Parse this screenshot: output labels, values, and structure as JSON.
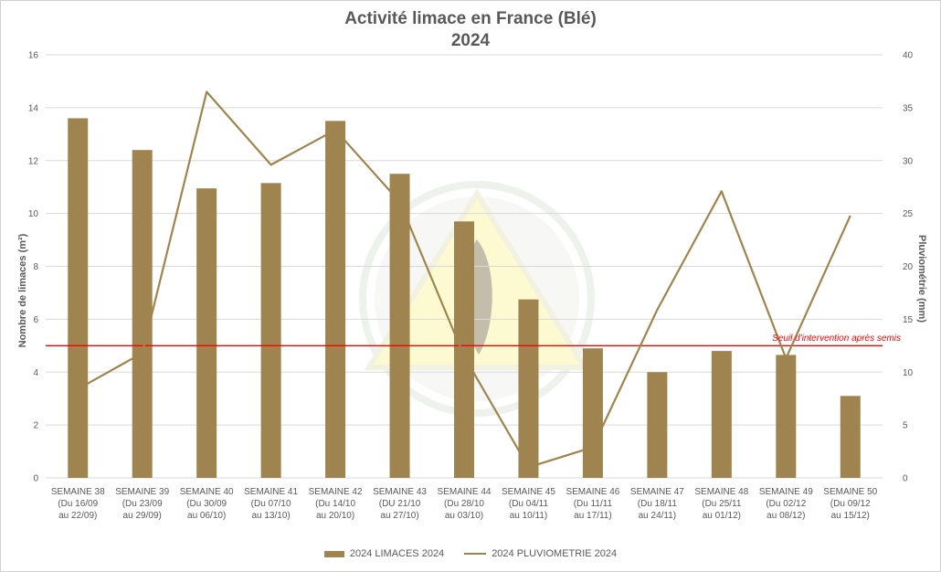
{
  "chart_data": {
    "type": "bar+line",
    "title": "Activité limace en France (Blé)",
    "subtitle": "2024",
    "ylabel_left": "Nombre de limaces (m²)",
    "ylabel_right": "Pluviométrie (mm)",
    "ylim_left": [
      0,
      16
    ],
    "yticks_left": [
      0,
      2,
      4,
      6,
      8,
      10,
      12,
      14,
      16
    ],
    "ylim_right": [
      0,
      40
    ],
    "yticks_right": [
      0,
      5,
      10,
      15,
      20,
      25,
      30,
      35,
      40
    ],
    "categories": [
      [
        "SEMAINE 38",
        "(Du 16/09",
        "au 22/09)"
      ],
      [
        "SEMAINE 39",
        "(Du 23/09",
        "au 29/09)"
      ],
      [
        "SEMAINE 40",
        "(Du 30/09",
        "au 06/10)"
      ],
      [
        "SEMAINE 41",
        "(Du 07/10",
        "au 13/10)"
      ],
      [
        "SEMAINE 42",
        "(Du 14/10",
        "au 20/10)"
      ],
      [
        "SEMAINE 43",
        "(DU 21/10",
        "au 27/10)"
      ],
      [
        "SEMAINE 44",
        "(Du 28/10",
        "au 03/10)"
      ],
      [
        "SEMAINE 45",
        "(Du 04/11",
        "au 10/11)"
      ],
      [
        "SEMAINE 46",
        "(Du 11/11",
        "au 17/11)"
      ],
      [
        "SEMAINE 47",
        "(Du 18/11",
        "au 24/11)"
      ],
      [
        "SEMAINE 48",
        "(Du 25/11",
        "au 01/12)"
      ],
      [
        "SEMAINE 49",
        "(Du 02/12",
        "au 08/12)"
      ],
      [
        "SEMAINE 50",
        "(Du 09/12",
        "au 15/12)"
      ]
    ],
    "series": [
      {
        "name": "2024 LIMACES 2024",
        "type": "bar",
        "axis": "left",
        "values": [
          13.6,
          12.4,
          10.95,
          11.15,
          13.5,
          11.5,
          9.7,
          6.75,
          4.9,
          4.0,
          4.8,
          4.65,
          3.1
        ]
      },
      {
        "name": "2024 PLUVIOMETRIE 2024",
        "type": "line",
        "axis": "right",
        "values": [
          8.4,
          11.8,
          36.5,
          29.6,
          32.9,
          26.1,
          11.5,
          1.0,
          2.9,
          15.9,
          27.1,
          11.3,
          24.8
        ]
      }
    ],
    "threshold": {
      "value": 5,
      "axis": "left",
      "label": "Seuil d'intervention après semis",
      "color": "#ff0000"
    },
    "colors": {
      "bar": "#a0844f",
      "line": "#a0844f",
      "grid": "#d9d9d9",
      "text": "#595959"
    },
    "grid": true,
    "legend_position": "bottom"
  }
}
